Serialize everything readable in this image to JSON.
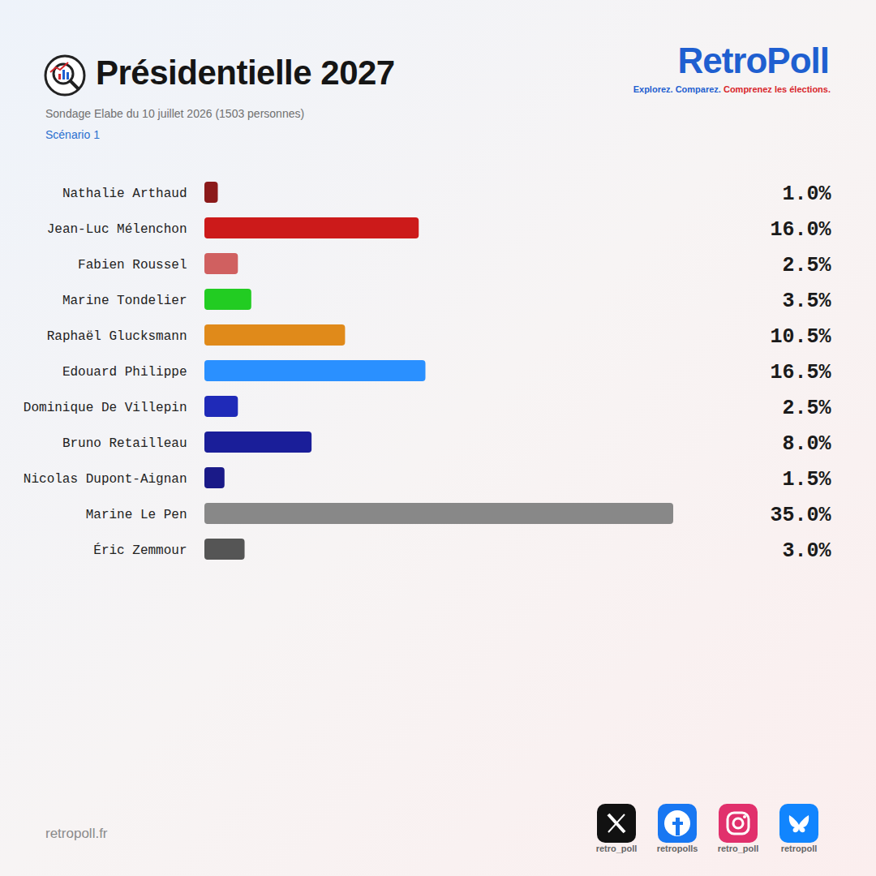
{
  "chart_data": {
    "type": "bar",
    "title": "Présidentielle 2027",
    "subtitle": "Sondage Elabe du 10 juillet 2026 (1503 personnes)",
    "annotations": [
      "Scénario 1"
    ],
    "orientation": "horizontal",
    "categories": [
      "Nathalie Arthaud",
      "Jean-Luc Mélenchon",
      "Fabien Roussel",
      "Marine Tondelier",
      "Raphaël Glucksmann",
      "Edouard Philippe",
      "Dominique De Villepin",
      "Bruno Retailleau",
      "Nicolas Dupont-Aignan",
      "Marine Le Pen",
      "Éric Zemmour"
    ],
    "values": [
      1.0,
      16.0,
      2.5,
      3.5,
      10.5,
      16.5,
      2.5,
      8.0,
      1.5,
      35.0,
      3.0
    ],
    "value_labels": [
      "1.0%",
      "16.0%",
      "2.5%",
      "3.5%",
      "10.5%",
      "16.5%",
      "2.5%",
      "8.0%",
      "1.5%",
      "35.0%",
      "3.0%"
    ],
    "colors": [
      "#8b1a1a",
      "#cc1a1a",
      "#d06060",
      "#22cc22",
      "#e08a1a",
      "#2a90ff",
      "#1f2ab8",
      "#1a1e99",
      "#1a1a88",
      "#888888",
      "#555555"
    ],
    "data_labels": true,
    "tick_labels": "y",
    "grid": false
  },
  "branding": {
    "name": "RetroPoll",
    "tagline": [
      "Explorez. Comparez.",
      "Comprenez les élections."
    ],
    "website": "retropoll.fr",
    "social_handles": [
      "retro_poll",
      "retropolls",
      "retro_poll",
      "retropoll"
    ]
  }
}
